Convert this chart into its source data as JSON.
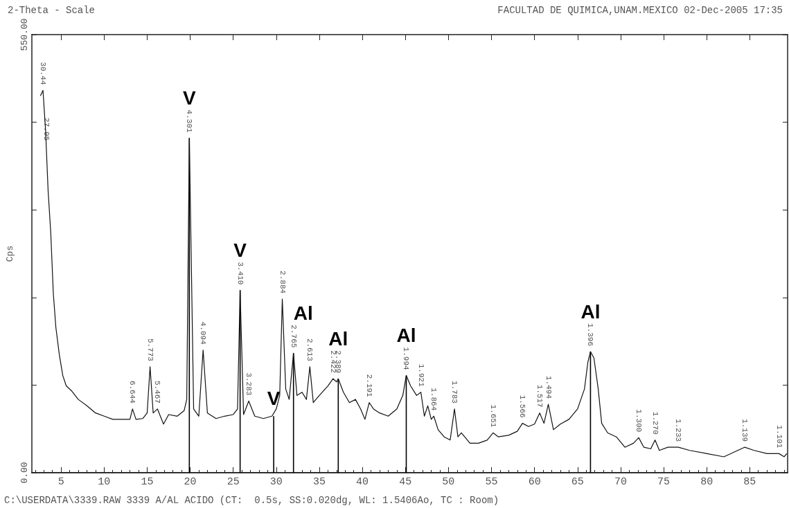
{
  "chart_data": {
    "type": "line",
    "title": "2-Theta - Scale",
    "subtitle": "FACULTAD DE QUIMICA,UNAM.MEXICO 02-Dec-2005 17:35",
    "ylabel": "Cps",
    "xlim": [
      1.6,
      89.4
    ],
    "xticks": [
      {
        "value": 2,
        "label": null
      },
      {
        "value": 3,
        "label": null
      },
      {
        "value": 4,
        "label": null
      },
      5,
      {
        "value": 6,
        "label": null
      },
      {
        "value": 7,
        "label": null
      },
      {
        "value": 8,
        "label": null
      },
      {
        "value": 9,
        "label": null
      },
      10,
      {
        "value": 11,
        "label": null
      },
      {
        "value": 12,
        "label": null
      },
      {
        "value": 13,
        "label": null
      },
      {
        "value": 14,
        "label": null
      },
      15,
      {
        "value": 16,
        "label": null
      },
      {
        "value": 17,
        "label": null
      },
      {
        "value": 18,
        "label": null
      },
      {
        "value": 19,
        "label": null
      },
      20,
      {
        "value": 21,
        "label": null
      },
      {
        "value": 22,
        "label": null
      },
      {
        "value": 23,
        "label": null
      },
      {
        "value": 24,
        "label": null
      },
      25,
      {
        "value": 26,
        "label": null
      },
      {
        "value": 27,
        "label": null
      },
      {
        "value": 28,
        "label": null
      },
      {
        "value": 29,
        "label": null
      },
      30,
      {
        "value": 31,
        "label": null
      },
      {
        "value": 32,
        "label": null
      },
      {
        "value": 33,
        "label": null
      },
      {
        "value": 34,
        "label": null
      },
      35,
      {
        "value": 36,
        "label": null
      },
      {
        "value": 37,
        "label": null
      },
      {
        "value": 38,
        "label": null
      },
      {
        "value": 39,
        "label": null
      },
      40,
      {
        "value": 41,
        "label": null
      },
      {
        "value": 42,
        "label": null
      },
      {
        "value": 43,
        "label": null
      },
      {
        "value": 44,
        "label": null
      },
      45,
      {
        "value": 46,
        "label": null
      },
      {
        "value": 47,
        "label": null
      },
      {
        "value": 48,
        "label": null
      },
      {
        "value": 49,
        "label": null
      },
      50,
      {
        "value": 51,
        "label": null
      },
      {
        "value": 52,
        "label": null
      },
      {
        "value": 53,
        "label": null
      },
      {
        "value": 54,
        "label": null
      },
      55,
      {
        "value": 56,
        "label": null
      },
      {
        "value": 57,
        "label": null
      },
      {
        "value": 58,
        "label": null
      },
      {
        "value": 59,
        "label": null
      },
      60,
      {
        "value": 61,
        "label": null
      },
      {
        "value": 62,
        "label": null
      },
      {
        "value": 63,
        "label": null
      },
      {
        "value": 64,
        "label": null
      },
      65,
      {
        "value": 66,
        "label": null
      },
      {
        "value": 67,
        "label": null
      },
      {
        "value": 68,
        "label": null
      },
      {
        "value": 69,
        "label": null
      },
      70,
      {
        "value": 71,
        "label": null
      },
      {
        "value": 72,
        "label": null
      },
      {
        "value": 73,
        "label": null
      },
      {
        "value": 74,
        "label": null
      },
      75,
      {
        "value": 76,
        "label": null
      },
      {
        "value": 77,
        "label": null
      },
      {
        "value": 78,
        "label": null
      },
      {
        "value": 79,
        "label": null
      },
      80,
      {
        "value": 81,
        "label": null
      },
      {
        "value": 82,
        "label": null
      },
      {
        "value": 83,
        "label": null
      },
      {
        "value": 84,
        "label": null
      },
      85,
      {
        "value": 86,
        "label": null
      },
      {
        "value": 87,
        "label": null
      },
      {
        "value": 88,
        "label": null
      },
      {
        "value": 89,
        "label": null
      }
    ],
    "ylim": [
      0,
      550
    ],
    "yticks": [
      {
        "value": 0,
        "label": "0.00"
      },
      {
        "value": 110,
        "label": null
      },
      {
        "value": 220,
        "label": null
      },
      {
        "value": 330,
        "label": null
      },
      {
        "value": 440,
        "label": null
      },
      {
        "value": 550,
        "label": "550.00"
      }
    ],
    "grid": false,
    "marker": "none",
    "line_style": "solid",
    "series": [
      {
        "color": "#111111",
        "x": [
          2.6,
          2.9,
          3.2,
          3.5,
          3.8,
          4.1,
          4.4,
          4.8,
          5.2,
          5.6,
          6.2,
          7,
          8,
          9,
          10,
          11,
          12,
          13,
          13.3,
          13.7,
          14.5,
          15,
          15.34,
          15.7,
          16.2,
          16.9,
          17.5,
          18.5,
          19.3,
          19.6,
          19.9,
          20.4,
          21,
          21.5,
          22,
          23,
          24,
          25,
          25.5,
          25.8,
          26.2,
          26.8,
          27.5,
          28.5,
          29.5,
          30,
          30.4,
          30.7,
          31.1,
          31.5,
          32,
          32.4,
          33,
          33.5,
          33.9,
          34.3,
          35,
          36,
          36.6,
          37,
          37.2,
          37.8,
          38.5,
          39.2,
          39.8,
          40.3,
          40.8,
          41.3,
          42,
          43,
          44,
          44.7,
          45.1,
          45.6,
          46.3,
          46.8,
          47.2,
          47.6,
          48,
          48.3,
          48.8,
          49.5,
          50.2,
          50.7,
          51.1,
          51.5,
          52.5,
          53.5,
          54.5,
          55.2,
          55.8,
          57,
          58,
          58.6,
          59.3,
          60,
          60.6,
          61.1,
          61.6,
          62.2,
          63,
          64,
          65,
          65.8,
          66.2,
          66.5,
          66.9,
          67.4,
          67.8,
          68.5,
          69.5,
          70.5,
          71.5,
          72.1,
          72.7,
          73.5,
          74,
          74.5,
          75.5,
          76.7,
          78,
          80,
          82,
          84.4,
          85.5,
          87,
          88.4,
          89,
          89.3
        ],
        "values": [
          473,
          480,
          430,
          353,
          302,
          225,
          182,
          148,
          122,
          109,
          103,
          92,
          84,
          75,
          71,
          67,
          67,
          67,
          80,
          67,
          68,
          75,
          133,
          75,
          80,
          61,
          73,
          71,
          78,
          92,
          420,
          80,
          71,
          154,
          75,
          68,
          71,
          73,
          80,
          229,
          73,
          90,
          71,
          68,
          71,
          80,
          97,
          218,
          105,
          92,
          150,
          97,
          101,
          92,
          133,
          88,
          97,
          109,
          118,
          114,
          118,
          101,
          88,
          92,
          80,
          67,
          88,
          80,
          75,
          71,
          80,
          97,
          122,
          109,
          97,
          101,
          71,
          84,
          67,
          71,
          54,
          45,
          41,
          80,
          45,
          50,
          37,
          37,
          41,
          50,
          45,
          47,
          52,
          62,
          58,
          61,
          75,
          62,
          86,
          54,
          61,
          67,
          80,
          105,
          139,
          152,
          144,
          105,
          62,
          50,
          45,
          32,
          37,
          44,
          32,
          30,
          41,
          28,
          32,
          32,
          28,
          24,
          20,
          32,
          28,
          24,
          24,
          20,
          24
        ]
      },
      {
        "type": "bar",
        "color": "#000000",
        "x": [
          19.9,
          25.8,
          29.7,
          32,
          37.2,
          45.1,
          66.5
        ],
        "values": [
          420,
          229,
          71,
          150,
          118,
          122,
          152
        ],
        "value_labels": [
          "V",
          "V",
          "V",
          "Al",
          "Al",
          "Al",
          "Al"
        ]
      }
    ],
    "annotations": [
      {
        "text": "30.44",
        "x": 2.9,
        "y": 480
      },
      {
        "text": "27.05",
        "x": 3.3,
        "y": 410
      },
      {
        "text": "6.644",
        "x": 13.3,
        "y": 80
      },
      {
        "text": "5.773",
        "x": 15.34,
        "y": 133
      },
      {
        "text": "5.467",
        "x": 16.2,
        "y": 80
      },
      {
        "text": "4.301",
        "x": 19.9,
        "y": 420
      },
      {
        "text": "4.094",
        "x": 21.5,
        "y": 154
      },
      {
        "text": "3.410",
        "x": 25.8,
        "y": 229
      },
      {
        "text": "3.283",
        "x": 26.8,
        "y": 90
      },
      {
        "text": "2.884",
        "x": 30.7,
        "y": 218
      },
      {
        "text": "2.765",
        "x": 32,
        "y": 150
      },
      {
        "text": "2.613",
        "x": 33.9,
        "y": 133
      },
      {
        "text": "2.422",
        "x": 36.6,
        "y": 118
      },
      {
        "text": "2.389",
        "x": 37.2,
        "y": 118
      },
      {
        "text": "2.191",
        "x": 40.8,
        "y": 88
      },
      {
        "text": "1.994",
        "x": 45.1,
        "y": 122
      },
      {
        "text": "1.921",
        "x": 46.8,
        "y": 101
      },
      {
        "text": "1.864",
        "x": 48.3,
        "y": 71
      },
      {
        "text": "1.783",
        "x": 50.7,
        "y": 80
      },
      {
        "text": "1.651",
        "x": 55.2,
        "y": 50
      },
      {
        "text": "1.566",
        "x": 58.6,
        "y": 62
      },
      {
        "text": "1.517",
        "x": 60.6,
        "y": 75
      },
      {
        "text": "1.494",
        "x": 61.6,
        "y": 86
      },
      {
        "text": "1.396",
        "x": 66.5,
        "y": 152
      },
      {
        "text": "1.300",
        "x": 72.1,
        "y": 44
      },
      {
        "text": "1.270",
        "x": 74,
        "y": 41
      },
      {
        "text": "1.233",
        "x": 76.7,
        "y": 32
      },
      {
        "text": "1.139",
        "x": 84.4,
        "y": 32
      },
      {
        "text": "1.101",
        "x": 88.4,
        "y": 24
      },
      "C:\\USERDATA\\3339.RAW 3339 A/AL ACIDO (CT:  0.5s, SS:0.020dg, WL: 1.5406Ao, TC : Room)"
    ]
  }
}
